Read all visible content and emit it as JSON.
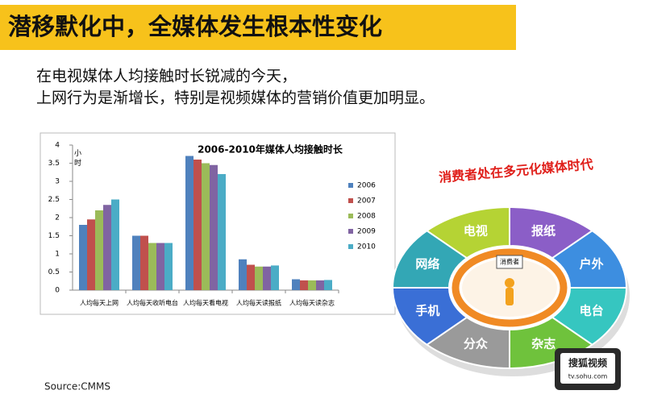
{
  "header": {
    "title": "潜移默化中，全媒体发生根本性变化"
  },
  "body": [
    "在电视媒体人均接触时长锐减的今天，",
    "上网行为是渐增长，特别是视频媒体的营销价值更加明显。"
  ],
  "chart_data": {
    "type": "bar",
    "title": "2006-2010年媒体人均接触时长",
    "y_label": "小时",
    "categories": [
      "人均每天上网",
      "人均每天收听电台",
      "人均每天看电视",
      "人均每天读报纸",
      "人均每天读杂志"
    ],
    "series": [
      {
        "name": "2006",
        "color": "#4f81bd",
        "values": [
          1.8,
          1.5,
          3.7,
          0.85,
          0.3
        ]
      },
      {
        "name": "2007",
        "color": "#c0504d",
        "values": [
          1.95,
          1.5,
          3.6,
          0.7,
          0.27
        ]
      },
      {
        "name": "2008",
        "color": "#9bbb59",
        "values": [
          2.2,
          1.3,
          3.5,
          0.65,
          0.27
        ]
      },
      {
        "name": "2009",
        "color": "#8064a2",
        "values": [
          2.35,
          1.3,
          3.45,
          0.65,
          0.27
        ]
      },
      {
        "name": "2010",
        "color": "#4bacc6",
        "values": [
          2.5,
          1.3,
          3.2,
          0.68,
          0.28
        ]
      }
    ],
    "ylim": [
      0,
      4
    ],
    "yticks": [
      0,
      0.5,
      1,
      1.5,
      2,
      2.5,
      3,
      3.5,
      4
    ],
    "grid": false,
    "legend": "right"
  },
  "source": "Source:CMMS",
  "diagram": {
    "title": "消费者处在多元化媒体时代",
    "center": "消费者",
    "segments": [
      "电视",
      "报纸",
      "户外",
      "电台",
      "杂志",
      "分众",
      "手机",
      "网络"
    ],
    "logo": {
      "name": "搜狐视频",
      "url": "tv.sohu.com"
    }
  }
}
